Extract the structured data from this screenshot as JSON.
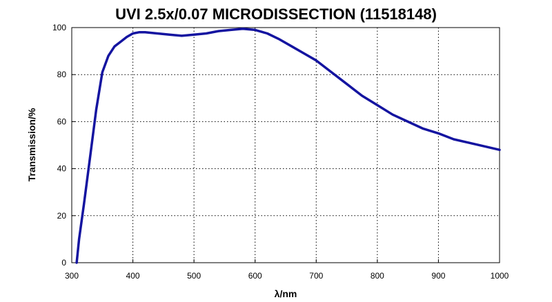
{
  "chart_data": {
    "type": "line",
    "title": "UVI 2.5x/0.07 MICRODISSECTION (11518148)",
    "xlabel": "λ/nm",
    "ylabel": "Transmission/%",
    "xlim": [
      300,
      1000
    ],
    "ylim": [
      0,
      100
    ],
    "xticks": [
      300,
      400,
      500,
      600,
      700,
      800,
      900,
      1000
    ],
    "yticks": [
      0,
      20,
      40,
      60,
      80,
      100
    ],
    "grid": true,
    "series": [
      {
        "color": "#1414a0",
        "x": [
          308,
          312,
          320,
          330,
          340,
          350,
          360,
          370,
          380,
          390,
          400,
          410,
          420,
          440,
          460,
          480,
          500,
          520,
          540,
          560,
          580,
          600,
          620,
          640,
          660,
          680,
          700,
          725,
          750,
          775,
          800,
          825,
          850,
          875,
          900,
          925,
          950,
          975,
          1000
        ],
        "y": [
          0,
          10,
          25,
          45,
          65,
          81,
          88,
          92,
          94,
          96,
          97.5,
          98,
          98,
          97.5,
          97,
          96.5,
          97,
          97.5,
          98.5,
          99,
          99.5,
          99,
          97.5,
          95,
          92,
          89,
          86,
          81,
          76,
          71,
          67,
          63,
          60,
          57,
          55,
          52.5,
          51,
          49.5,
          48
        ]
      }
    ]
  }
}
